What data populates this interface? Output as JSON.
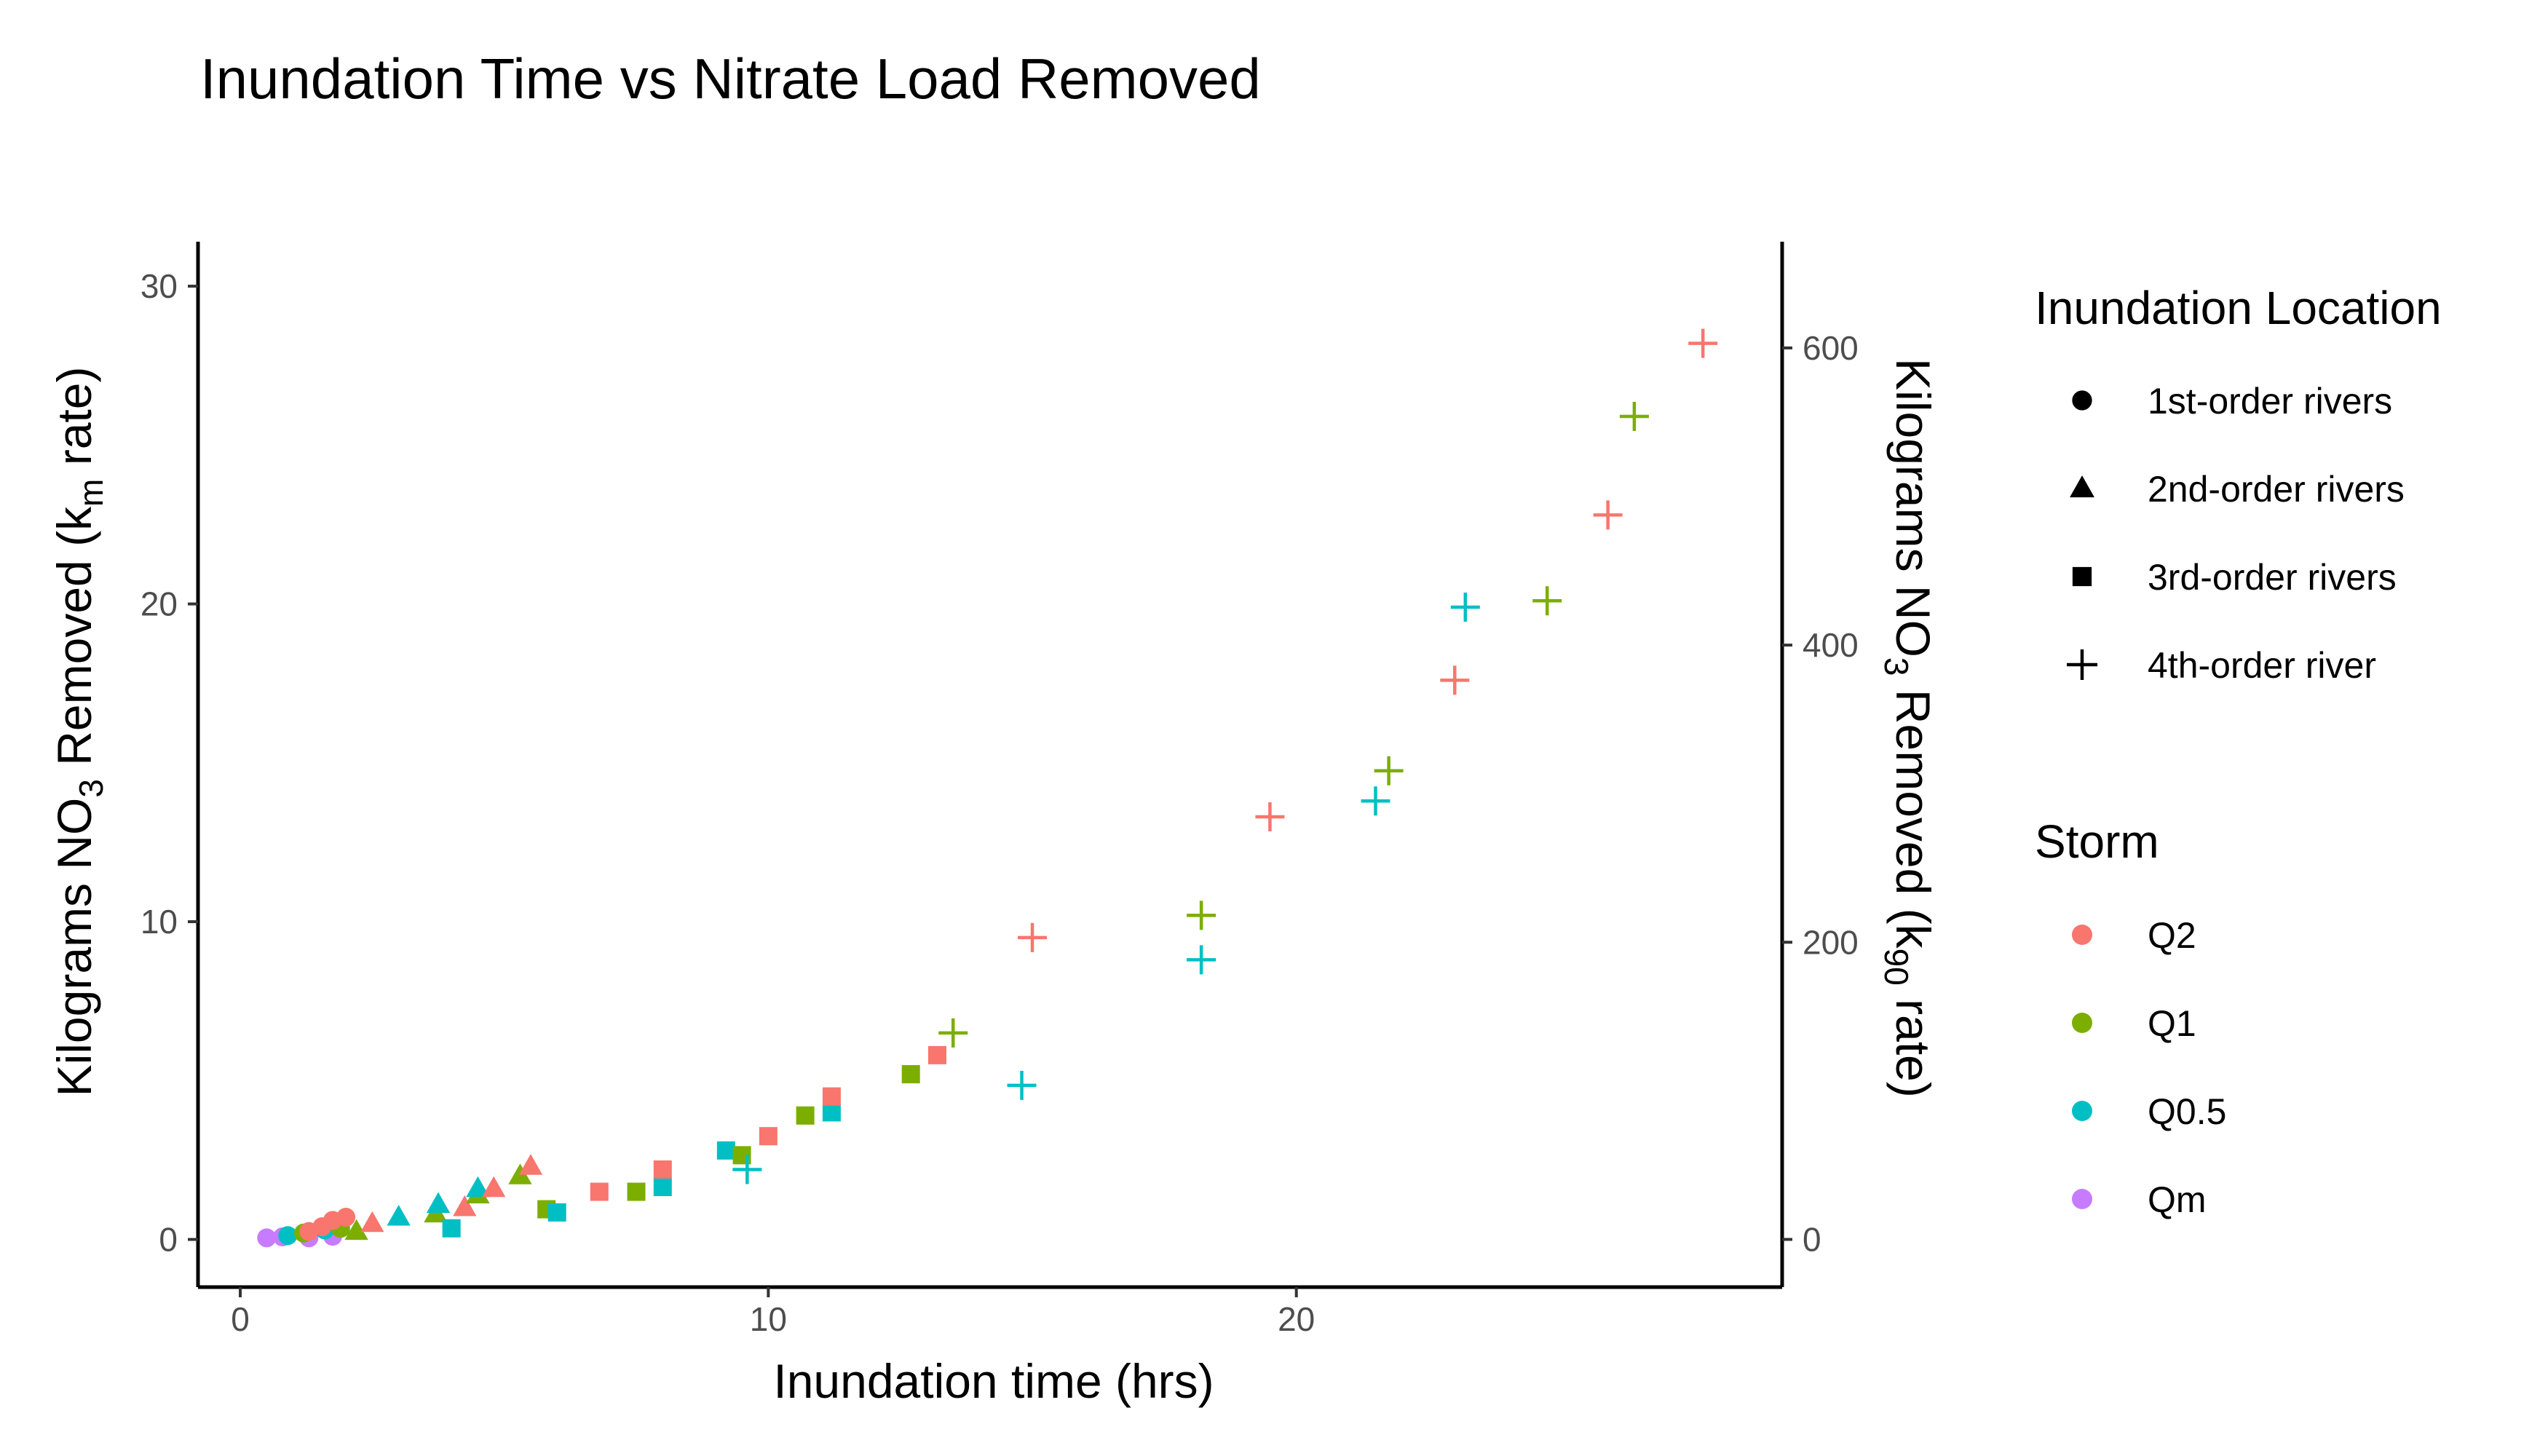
{
  "chart_data": {
    "type": "scatter",
    "title": "Inundation Time vs Nitrate Load Removed",
    "xlabel": "Inundation time (hrs)",
    "ylabel": {
      "pre": "Kilograms NO",
      "sub1": "3",
      "mid": " Removed (k",
      "sub2": "m",
      "post": " rate)"
    },
    "y2label": {
      "pre": "Kilograms NO",
      "sub1": "3",
      "mid": " Removed (k",
      "sub2": "90",
      "post": " rate)"
    },
    "xlim": [
      -0.8,
      29.2
    ],
    "ylim": [
      -1.5,
      31.4
    ],
    "y2lim": [
      -32.1,
      671.5
    ],
    "xticks": [
      0,
      10,
      20
    ],
    "yticks": [
      0,
      10,
      20,
      30
    ],
    "y2ticks": [
      0,
      200,
      400,
      600
    ],
    "grid": false,
    "legend": {
      "placement": "right",
      "shape_title": "Inundation Location",
      "shapes": [
        {
          "shape": "circle",
          "label": "1st-order rivers"
        },
        {
          "shape": "triangle",
          "label": "2nd-order rivers"
        },
        {
          "shape": "square",
          "label": "3rd-order rivers"
        },
        {
          "shape": "cross",
          "label": "4th-order river"
        }
      ],
      "color_title": "Storm",
      "storms": [
        {
          "name": "Q2",
          "color": "#F8766D"
        },
        {
          "name": "Q1",
          "color": "#7CAE00"
        },
        {
          "name": "Q0.5",
          "color": "#00BFC4"
        },
        {
          "name": "Qm",
          "color": "#C77CFF"
        }
      ]
    },
    "points": [
      {
        "x": 0.5,
        "y": 0.05,
        "shape": "circle",
        "storm": "Qm"
      },
      {
        "x": 0.8,
        "y": 0.08,
        "shape": "circle",
        "storm": "Qm"
      },
      {
        "x": 1.3,
        "y": 0.05,
        "shape": "circle",
        "storm": "Qm"
      },
      {
        "x": 1.75,
        "y": 0.1,
        "shape": "circle",
        "storm": "Qm"
      },
      {
        "x": 0.9,
        "y": 0.12,
        "shape": "circle",
        "storm": "Q0.5"
      },
      {
        "x": 1.6,
        "y": 0.3,
        "shape": "circle",
        "storm": "Q0.5"
      },
      {
        "x": 1.2,
        "y": 0.2,
        "shape": "circle",
        "storm": "Q1"
      },
      {
        "x": 1.9,
        "y": 0.35,
        "shape": "circle",
        "storm": "Q1"
      },
      {
        "x": 1.3,
        "y": 0.25,
        "shape": "circle",
        "storm": "Q2"
      },
      {
        "x": 1.55,
        "y": 0.4,
        "shape": "circle",
        "storm": "Q2"
      },
      {
        "x": 1.75,
        "y": 0.6,
        "shape": "circle",
        "storm": "Q2"
      },
      {
        "x": 2.0,
        "y": 0.7,
        "shape": "circle",
        "storm": "Q2"
      },
      {
        "x": 2.2,
        "y": 0.25,
        "shape": "triangle",
        "storm": "Q1"
      },
      {
        "x": 2.5,
        "y": 0.5,
        "shape": "triangle",
        "storm": "Q2"
      },
      {
        "x": 3.0,
        "y": 0.7,
        "shape": "triangle",
        "storm": "Q0.5"
      },
      {
        "x": 3.7,
        "y": 0.8,
        "shape": "triangle",
        "storm": "Q1"
      },
      {
        "x": 3.75,
        "y": 1.1,
        "shape": "triangle",
        "storm": "Q0.5"
      },
      {
        "x": 4.25,
        "y": 1.0,
        "shape": "triangle",
        "storm": "Q2"
      },
      {
        "x": 4.5,
        "y": 1.4,
        "shape": "triangle",
        "storm": "Q1"
      },
      {
        "x": 4.5,
        "y": 1.6,
        "shape": "triangle",
        "storm": "Q0.5"
      },
      {
        "x": 4.8,
        "y": 1.6,
        "shape": "triangle",
        "storm": "Q2"
      },
      {
        "x": 5.3,
        "y": 2.0,
        "shape": "triangle",
        "storm": "Q1"
      },
      {
        "x": 5.5,
        "y": 2.3,
        "shape": "triangle",
        "storm": "Q2"
      },
      {
        "x": 4.0,
        "y": 0.35,
        "shape": "square",
        "storm": "Q0.5"
      },
      {
        "x": 5.8,
        "y": 0.95,
        "shape": "square",
        "storm": "Q1"
      },
      {
        "x": 6.0,
        "y": 0.85,
        "shape": "square",
        "storm": "Q0.5"
      },
      {
        "x": 6.8,
        "y": 1.5,
        "shape": "square",
        "storm": "Q2"
      },
      {
        "x": 7.5,
        "y": 1.5,
        "shape": "square",
        "storm": "Q1"
      },
      {
        "x": 8.0,
        "y": 1.65,
        "shape": "square",
        "storm": "Q0.5"
      },
      {
        "x": 8.0,
        "y": 2.2,
        "shape": "square",
        "storm": "Q2"
      },
      {
        "x": 9.2,
        "y": 2.8,
        "shape": "square",
        "storm": "Q0.5"
      },
      {
        "x": 9.5,
        "y": 2.65,
        "shape": "square",
        "storm": "Q1"
      },
      {
        "x": 10.0,
        "y": 3.25,
        "shape": "square",
        "storm": "Q2"
      },
      {
        "x": 10.7,
        "y": 3.9,
        "shape": "square",
        "storm": "Q1"
      },
      {
        "x": 11.2,
        "y": 4.0,
        "shape": "square",
        "storm": "Q0.5"
      },
      {
        "x": 11.2,
        "y": 4.5,
        "shape": "square",
        "storm": "Q2"
      },
      {
        "x": 12.7,
        "y": 5.2,
        "shape": "square",
        "storm": "Q1"
      },
      {
        "x": 13.2,
        "y": 5.8,
        "shape": "square",
        "storm": "Q2"
      },
      {
        "x": 9.6,
        "y": 2.2,
        "shape": "cross",
        "storm": "Q0.5"
      },
      {
        "x": 13.5,
        "y": 6.5,
        "shape": "cross",
        "storm": "Q1"
      },
      {
        "x": 14.8,
        "y": 4.85,
        "shape": "cross",
        "storm": "Q0.5"
      },
      {
        "x": 15.0,
        "y": 9.5,
        "shape": "cross",
        "storm": "Q2"
      },
      {
        "x": 18.2,
        "y": 10.2,
        "shape": "cross",
        "storm": "Q1"
      },
      {
        "x": 18.2,
        "y": 8.8,
        "shape": "cross",
        "storm": "Q0.5"
      },
      {
        "x": 19.5,
        "y": 13.3,
        "shape": "cross",
        "storm": "Q2"
      },
      {
        "x": 21.5,
        "y": 13.8,
        "shape": "cross",
        "storm": "Q0.5"
      },
      {
        "x": 21.75,
        "y": 14.75,
        "shape": "cross",
        "storm": "Q1"
      },
      {
        "x": 23.0,
        "y": 17.6,
        "shape": "cross",
        "storm": "Q2"
      },
      {
        "x": 23.2,
        "y": 19.9,
        "shape": "cross",
        "storm": "Q0.5"
      },
      {
        "x": 24.75,
        "y": 20.1,
        "shape": "cross",
        "storm": "Q1"
      },
      {
        "x": 25.9,
        "y": 22.8,
        "shape": "cross",
        "storm": "Q2"
      },
      {
        "x": 26.4,
        "y": 25.9,
        "shape": "cross",
        "storm": "Q1"
      },
      {
        "x": 27.7,
        "y": 28.2,
        "shape": "cross",
        "storm": "Q2"
      }
    ]
  }
}
